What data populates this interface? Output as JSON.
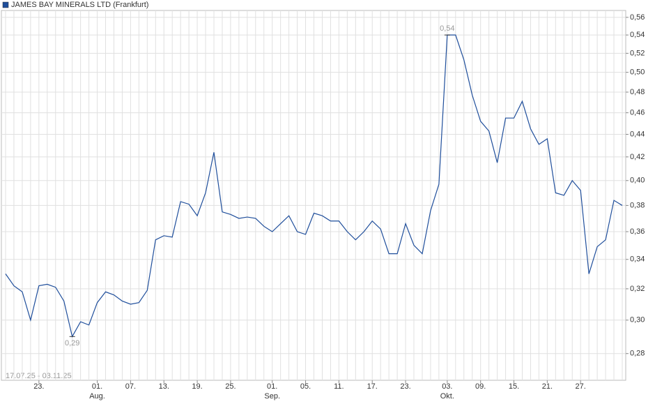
{
  "chart_data": {
    "type": "line",
    "title": "JAMES BAY MINERALS LTD (Frankfurt)",
    "note": "17.07.25 - 03.11.25",
    "log_scale": true,
    "grid": true,
    "categories": [
      null,
      null,
      null,
      null,
      "23.",
      null,
      null,
      null,
      null,
      null,
      null,
      "01.",
      null,
      null,
      null,
      "07.",
      null,
      null,
      null,
      "13.",
      null,
      null,
      null,
      "19.",
      null,
      null,
      null,
      "25.",
      null,
      null,
      null,
      null,
      "01.",
      null,
      null,
      null,
      "05.",
      null,
      null,
      null,
      "11.",
      null,
      null,
      null,
      "17.",
      null,
      null,
      null,
      "23.",
      null,
      null,
      null,
      null,
      "03.",
      null,
      null,
      null,
      "09.",
      null,
      null,
      null,
      "15.",
      null,
      null,
      null,
      "21.",
      null,
      null,
      null,
      "27.",
      null,
      null,
      null,
      null,
      null
    ],
    "category_months": [
      null,
      null,
      null,
      null,
      null,
      null,
      null,
      null,
      null,
      null,
      null,
      "Aug.",
      null,
      null,
      null,
      null,
      null,
      null,
      null,
      null,
      null,
      null,
      null,
      null,
      null,
      null,
      null,
      null,
      null,
      null,
      null,
      null,
      "Sep.",
      null,
      null,
      null,
      null,
      null,
      null,
      null,
      null,
      null,
      null,
      null,
      null,
      null,
      null,
      null,
      null,
      null,
      null,
      null,
      null,
      "Okt.",
      null,
      null,
      null,
      null,
      null,
      null,
      null,
      null,
      null,
      null,
      null,
      null,
      null,
      null,
      null,
      null,
      null,
      null,
      null,
      null,
      null
    ],
    "series": [
      {
        "name": "JAMES BAY MINERALS LTD (Frankfurt)",
        "color": "#1f4e9b",
        "values": [
          0.33,
          0.322,
          0.318,
          0.3,
          0.322,
          0.323,
          0.321,
          0.312,
          0.29,
          0.299,
          0.297,
          0.311,
          0.318,
          0.316,
          0.312,
          0.31,
          0.311,
          0.319,
          0.354,
          0.357,
          0.356,
          0.383,
          0.381,
          0.372,
          0.39,
          0.424,
          0.375,
          0.373,
          0.37,
          0.371,
          0.37,
          0.364,
          0.36,
          0.366,
          0.372,
          0.36,
          0.358,
          0.374,
          0.372,
          0.368,
          0.368,
          0.36,
          0.354,
          0.36,
          0.368,
          0.362,
          0.344,
          0.344,
          0.366,
          0.35,
          0.344,
          0.376,
          0.397,
          0.54,
          0.54,
          0.513,
          0.477,
          0.452,
          0.443,
          0.415,
          0.455,
          0.455,
          0.471,
          0.445,
          0.431,
          0.436,
          0.39,
          0.388,
          0.4,
          0.392,
          0.33,
          0.349,
          0.354,
          0.384,
          0.38
        ],
        "value_labels": [
          null,
          null,
          null,
          null,
          null,
          null,
          null,
          null,
          "0,29",
          null,
          null,
          null,
          null,
          null,
          null,
          null,
          null,
          null,
          null,
          null,
          null,
          null,
          null,
          null,
          null,
          null,
          null,
          null,
          null,
          null,
          null,
          null,
          null,
          null,
          null,
          null,
          null,
          null,
          null,
          null,
          null,
          null,
          null,
          null,
          null,
          null,
          null,
          null,
          null,
          null,
          null,
          null,
          null,
          "0,54",
          null,
          null,
          null,
          null,
          null,
          null,
          null,
          null,
          null,
          null,
          null,
          null,
          null,
          null,
          null,
          null,
          null,
          null,
          null,
          null,
          null
        ]
      }
    ],
    "ylim": [
      0.265,
      0.568
    ],
    "yticks": [
      {
        "value": 0.28,
        "label": "0,28"
      },
      {
        "value": 0.3,
        "label": "0,30"
      },
      {
        "value": 0.32,
        "label": "0,32"
      },
      {
        "value": 0.34,
        "label": "0,34"
      },
      {
        "value": 0.36,
        "label": "0,36"
      },
      {
        "value": 0.38,
        "label": "0,38"
      },
      {
        "value": 0.4,
        "label": "0,40"
      },
      {
        "value": 0.42,
        "label": "0,42"
      },
      {
        "value": 0.44,
        "label": "0,44"
      },
      {
        "value": 0.46,
        "label": "0,46"
      },
      {
        "value": 0.48,
        "label": "0,48"
      },
      {
        "value": 0.5,
        "label": "0,50"
      },
      {
        "value": 0.52,
        "label": "0,52"
      },
      {
        "value": 0.54,
        "label": "0,54"
      },
      {
        "value": 0.56,
        "label": "0,56"
      }
    ]
  }
}
